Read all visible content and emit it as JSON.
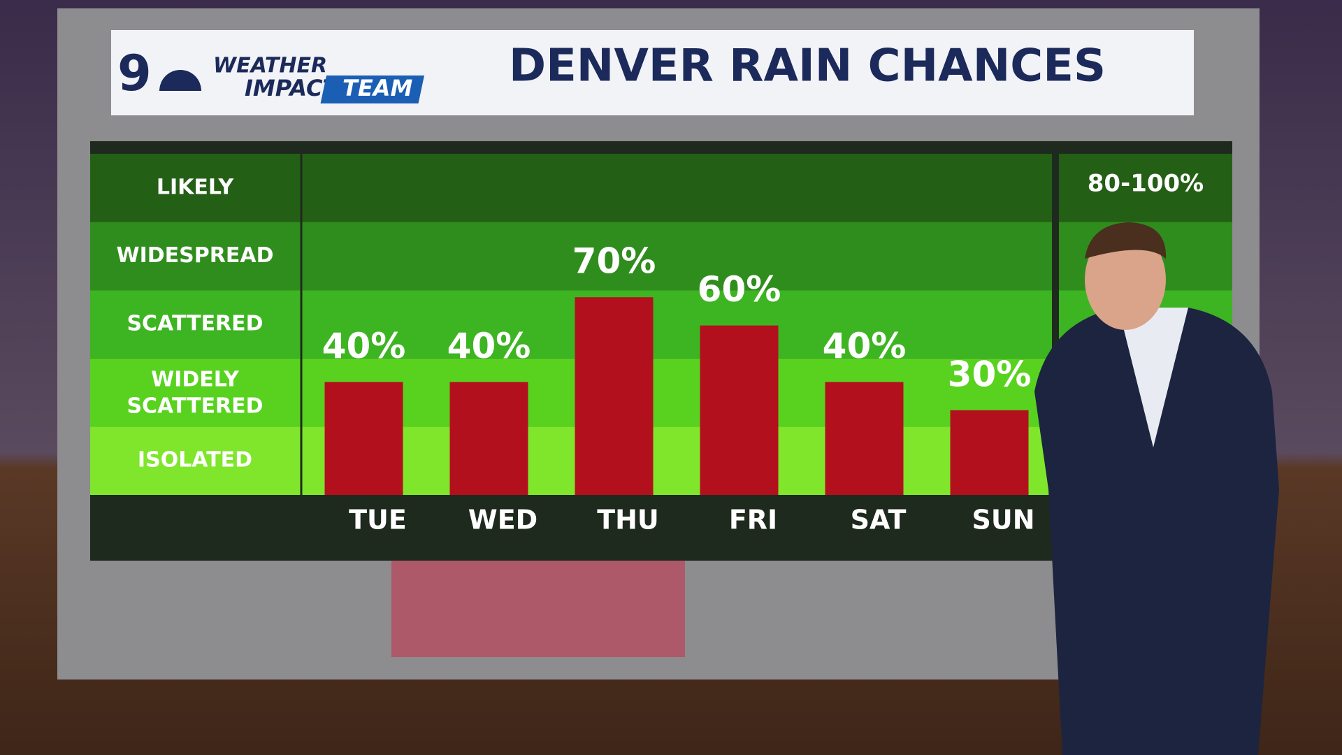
{
  "header": {
    "logo_number": "9",
    "logo_line1": "WEATHER",
    "logo_line2": "IMPACT",
    "logo_line3": "TEAM"
  },
  "chart_data": {
    "type": "bar",
    "title": "DENVER RAIN CHANCES",
    "categories": [
      "TUE",
      "WED",
      "THU",
      "FRI",
      "SAT",
      "SUN"
    ],
    "values": [
      40,
      40,
      70,
      60,
      40,
      30
    ],
    "value_labels": [
      "40%",
      "40%",
      "70%",
      "60%",
      "40%",
      "30%"
    ],
    "color": "#b3101d",
    "ylim": [
      0,
      100
    ],
    "bands": [
      "LIKELY",
      "WIDESPREAD",
      "SCATTERED",
      "WIDELY SCATTERED",
      "ISOLATED"
    ],
    "band_colors": [
      "#245f16",
      "#2f8d1d",
      "#3db422",
      "#58d21f",
      "#7fe62b"
    ],
    "range_labels": [
      "80-100%"
    ]
  }
}
